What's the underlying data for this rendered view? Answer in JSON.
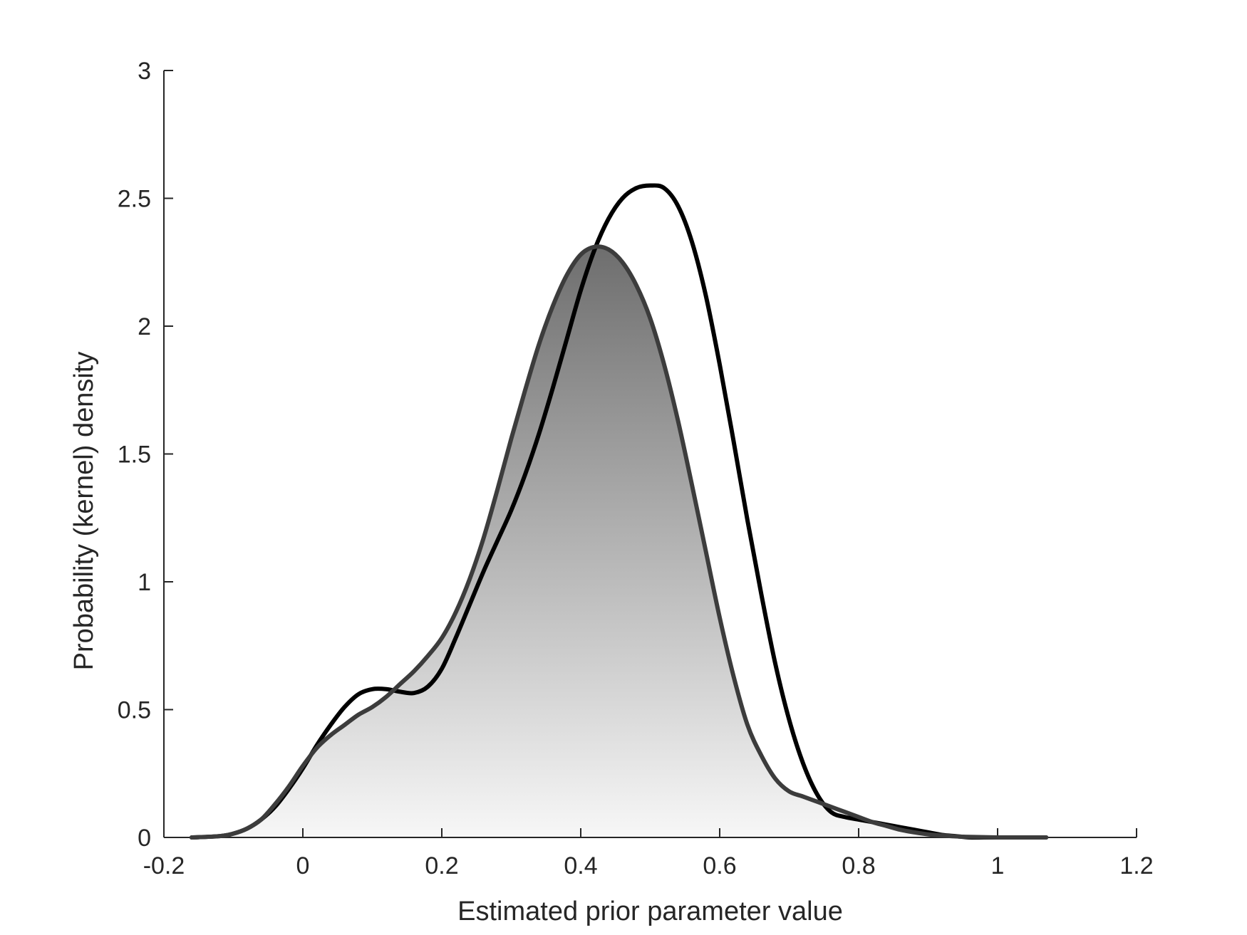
{
  "chart_data": {
    "type": "line",
    "title": "",
    "xlabel": "Estimated prior parameter value",
    "ylabel": "Probability (kernel) density",
    "xlim": [
      -0.2,
      1.2
    ],
    "ylim": [
      0,
      3
    ],
    "xticks": [
      -0.2,
      0,
      0.2,
      0.4,
      0.6,
      0.8,
      1,
      1.2
    ],
    "xtick_labels": [
      "-0.2",
      "0",
      "0.2",
      "0.4",
      "0.6",
      "0.8",
      "1",
      "1.2"
    ],
    "yticks": [
      0,
      0.5,
      1,
      1.5,
      2,
      2.5,
      3
    ],
    "ytick_labels": [
      "0",
      "0.5",
      "1",
      "1.5",
      "2",
      "2.5",
      "3"
    ],
    "grid": false,
    "legend": "none",
    "fill": {
      "top_color": "#6e6e6e",
      "bottom_color": "#f7f7f7",
      "under_series": 1
    },
    "series": [
      {
        "color": "#000000",
        "x": [
          -0.16,
          -0.12,
          -0.1,
          -0.08,
          -0.06,
          -0.04,
          -0.02,
          0,
          0.02,
          0.04,
          0.06,
          0.08,
          0.1,
          0.12,
          0.14,
          0.16,
          0.18,
          0.2,
          0.22,
          0.24,
          0.26,
          0.28,
          0.3,
          0.32,
          0.34,
          0.36,
          0.38,
          0.4,
          0.42,
          0.44,
          0.46,
          0.48,
          0.5,
          0.52,
          0.54,
          0.56,
          0.58,
          0.6,
          0.62,
          0.64,
          0.66,
          0.68,
          0.7,
          0.72,
          0.74,
          0.76,
          0.78,
          0.8,
          0.82,
          0.84,
          0.86,
          0.88,
          0.9,
          0.92,
          0.94,
          0.96,
          0.98,
          1,
          1.04,
          1.07
        ],
        "y": [
          0,
          0.005,
          0.015,
          0.035,
          0.07,
          0.12,
          0.19,
          0.27,
          0.36,
          0.44,
          0.51,
          0.56,
          0.58,
          0.58,
          0.57,
          0.565,
          0.59,
          0.66,
          0.78,
          0.91,
          1.04,
          1.16,
          1.28,
          1.42,
          1.58,
          1.76,
          1.95,
          2.14,
          2.3,
          2.42,
          2.5,
          2.54,
          2.55,
          2.54,
          2.47,
          2.33,
          2.12,
          1.85,
          1.55,
          1.24,
          0.95,
          0.68,
          0.46,
          0.29,
          0.17,
          0.1,
          0.08,
          0.07,
          0.06,
          0.05,
          0.04,
          0.03,
          0.02,
          0.01,
          0.005,
          0,
          0,
          0,
          0,
          0
        ]
      },
      {
        "color": "#3c3c3c",
        "x": [
          -0.16,
          -0.12,
          -0.1,
          -0.08,
          -0.06,
          -0.04,
          -0.02,
          0,
          0.02,
          0.04,
          0.06,
          0.08,
          0.1,
          0.12,
          0.14,
          0.16,
          0.18,
          0.2,
          0.22,
          0.24,
          0.26,
          0.28,
          0.3,
          0.32,
          0.34,
          0.36,
          0.38,
          0.4,
          0.42,
          0.44,
          0.46,
          0.48,
          0.5,
          0.52,
          0.54,
          0.56,
          0.58,
          0.6,
          0.62,
          0.64,
          0.66,
          0.68,
          0.7,
          0.72,
          0.74,
          0.76,
          0.78,
          0.8,
          0.82,
          0.84,
          0.86,
          0.88,
          0.9,
          0.92,
          0.94,
          0.96,
          0.98,
          1,
          1.04,
          1.07
        ],
        "y": [
          0,
          0.005,
          0.015,
          0.035,
          0.07,
          0.13,
          0.2,
          0.28,
          0.35,
          0.4,
          0.44,
          0.48,
          0.51,
          0.55,
          0.6,
          0.65,
          0.71,
          0.78,
          0.88,
          1.01,
          1.17,
          1.36,
          1.56,
          1.75,
          1.93,
          2.08,
          2.2,
          2.28,
          2.31,
          2.3,
          2.25,
          2.16,
          2.03,
          1.85,
          1.63,
          1.38,
          1.12,
          0.86,
          0.63,
          0.44,
          0.32,
          0.23,
          0.18,
          0.16,
          0.14,
          0.12,
          0.1,
          0.08,
          0.06,
          0.045,
          0.03,
          0.02,
          0.012,
          0.008,
          0.004,
          0.002,
          0.001,
          0,
          0,
          0
        ]
      }
    ]
  }
}
